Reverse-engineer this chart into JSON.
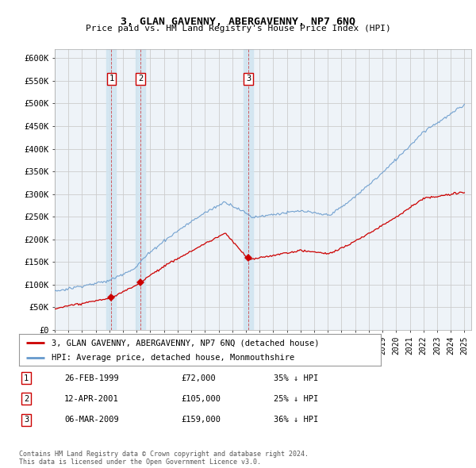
{
  "title": "3, GLAN GAVENNY, ABERGAVENNY, NP7 6NQ",
  "subtitle": "Price paid vs. HM Land Registry's House Price Index (HPI)",
  "ylim": [
    0,
    620000
  ],
  "yticks": [
    0,
    50000,
    100000,
    150000,
    200000,
    250000,
    300000,
    350000,
    400000,
    450000,
    500000,
    550000,
    600000
  ],
  "ytick_labels": [
    "£0",
    "£50K",
    "£100K",
    "£150K",
    "£200K",
    "£250K",
    "£300K",
    "£350K",
    "£400K",
    "£450K",
    "£500K",
    "£550K",
    "£600K"
  ],
  "xmin": 1995,
  "xmax": 2025.5,
  "legend_entries": [
    "3, GLAN GAVENNY, ABERGAVENNY, NP7 6NQ (detached house)",
    "HPI: Average price, detached house, Monmouthshire"
  ],
  "legend_colors": [
    "#cc0000",
    "#6699cc"
  ],
  "transactions": [
    {
      "num": 1,
      "date": "26-FEB-1999",
      "price": 72000,
      "hpi_rel": "35% ↓ HPI",
      "year": 1999.15
    },
    {
      "num": 2,
      "date": "12-APR-2001",
      "price": 105000,
      "hpi_rel": "25% ↓ HPI",
      "year": 2001.28
    },
    {
      "num": 3,
      "date": "06-MAR-2009",
      "price": 159000,
      "hpi_rel": "36% ↓ HPI",
      "year": 2009.18
    }
  ],
  "footer": "Contains HM Land Registry data © Crown copyright and database right 2024.\nThis data is licensed under the Open Government Licence v3.0.",
  "background_color": "#ffffff",
  "grid_color": "#cccccc",
  "plot_bg": "#eef3f8",
  "span_color": "#d0e4f0",
  "vline_color": "#cc0000"
}
